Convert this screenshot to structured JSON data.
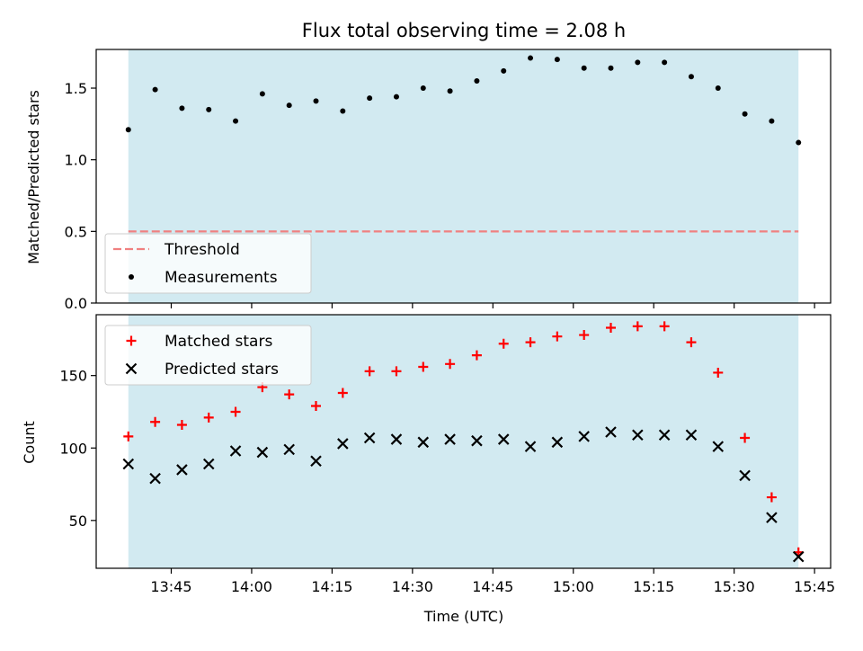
{
  "chart_data": {
    "type": "scatter",
    "title": "Flux total observing time = 2.08 h",
    "xlabel": "Time (UTC)",
    "x_tick_labels": [
      "13:45",
      "14:00",
      "14:15",
      "14:30",
      "14:45",
      "15:00",
      "15:15",
      "15:30",
      "15:45"
    ],
    "x_ticks": [
      "13:45",
      "14:00",
      "14:15",
      "14:30",
      "14:45",
      "15:00",
      "15:15",
      "15:30",
      "15:45"
    ],
    "xlim": [
      "13:31",
      "15:48"
    ],
    "times": [
      "13:37",
      "13:42",
      "13:47",
      "13:52",
      "13:57",
      "14:02",
      "14:07",
      "14:12",
      "14:17",
      "14:22",
      "14:27",
      "14:32",
      "14:37",
      "14:42",
      "14:47",
      "14:52",
      "14:57",
      "15:02",
      "15:07",
      "15:12",
      "15:17",
      "15:22",
      "15:27",
      "15:32",
      "15:37",
      "15:42"
    ],
    "shaded_span": [
      "13:37",
      "15:42"
    ],
    "shade_color": "#add8e6",
    "panels": [
      {
        "ylabel": "Matched/Predicted stars",
        "ylim": [
          0,
          1.77
        ],
        "y_ticks": [
          0.0,
          0.5,
          1.0,
          1.5
        ],
        "y_tick_labels": [
          "0.0",
          "0.5",
          "1.0",
          "1.5"
        ],
        "legend_position": "lower-left",
        "series": [
          {
            "name": "Threshold",
            "kind": "dashed-line",
            "color": "#f08080",
            "values": [
              0.5,
              0.5
            ]
          },
          {
            "name": "Measurements",
            "kind": "dot",
            "color": "#000000",
            "values": [
              1.21,
              1.49,
              1.36,
              1.35,
              1.27,
              1.46,
              1.38,
              1.41,
              1.34,
              1.43,
              1.44,
              1.5,
              1.48,
              1.55,
              1.62,
              1.71,
              1.7,
              1.64,
              1.64,
              1.68,
              1.68,
              1.58,
              1.5,
              1.32,
              1.27,
              1.12
            ]
          }
        ]
      },
      {
        "ylabel": "Count",
        "ylim": [
          17,
          192
        ],
        "y_ticks": [
          50,
          100,
          150
        ],
        "y_tick_labels": [
          "50",
          "100",
          "150"
        ],
        "legend_position": "upper-left",
        "series": [
          {
            "name": "Matched stars",
            "kind": "plus",
            "color": "#ff0000",
            "values": [
              108,
              118,
              116,
              121,
              125,
              142,
              137,
              129,
              138,
              153,
              153,
              156,
              158,
              164,
              172,
              173,
              177,
              178,
              183,
              184,
              184,
              173,
              152,
              107,
              66,
              28
            ]
          },
          {
            "name": "Predicted stars",
            "kind": "x",
            "color": "#000000",
            "values": [
              89,
              79,
              85,
              89,
              98,
              97,
              99,
              91,
              103,
              107,
              106,
              104,
              106,
              105,
              106,
              101,
              104,
              108,
              111,
              109,
              109,
              109,
              101,
              81,
              52,
              25
            ]
          }
        ]
      }
    ]
  }
}
